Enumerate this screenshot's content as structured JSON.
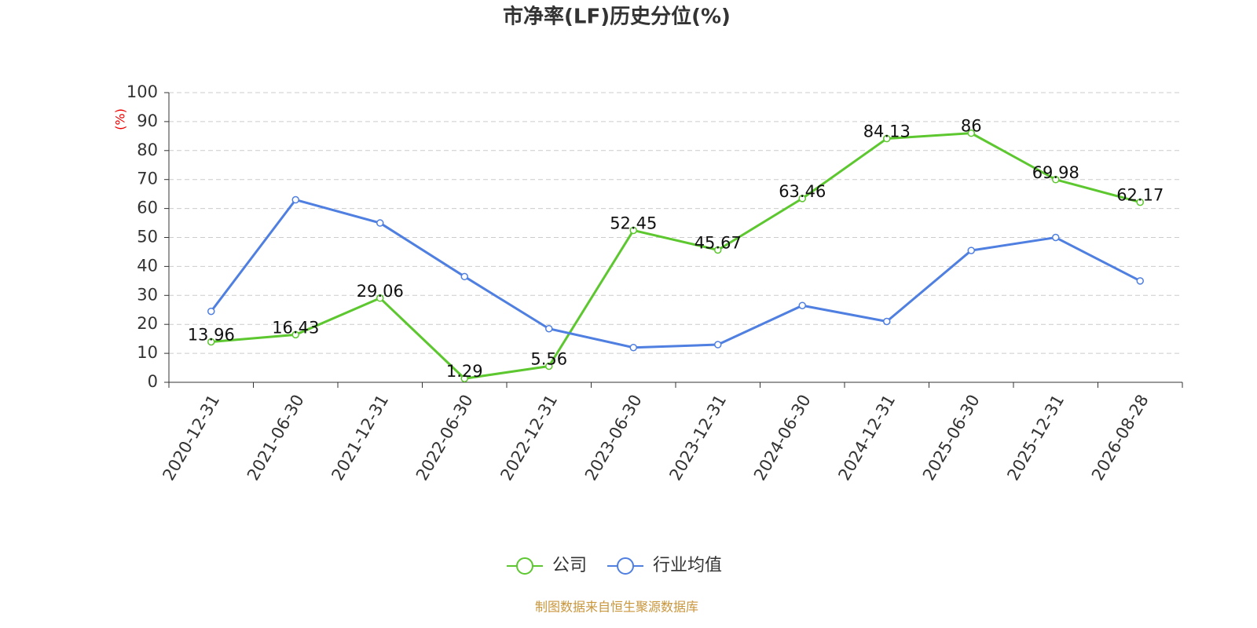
{
  "chart_data": {
    "type": "line",
    "title": "市净率(LF)历史分位(%)",
    "y_label": "(%)",
    "source": "制图数据来自恒生聚源数据库",
    "categories": [
      "2020-12-31",
      "2021-06-30",
      "2021-12-31",
      "2022-06-30",
      "2022-12-31",
      "2023-06-30",
      "2023-12-31",
      "2024-06-30",
      "2024-12-31",
      "2025-06-30",
      "2025-12-31",
      "2026-08-28"
    ],
    "series": [
      {
        "name": "公司",
        "color": "#5cc72e",
        "data_labels": true,
        "values": [
          13.96,
          16.43,
          29.06,
          1.29,
          5.56,
          52.45,
          45.67,
          63.46,
          84.13,
          86,
          69.98,
          62.17
        ]
      },
      {
        "name": "行业均值",
        "color": "#4f7fe0",
        "data_labels": false,
        "values": [
          24.5,
          63,
          55,
          36.5,
          18.5,
          12,
          13,
          26.5,
          21,
          45.5,
          50,
          35
        ]
      }
    ],
    "ylim": [
      0,
      100
    ],
    "yticks": [
      0,
      10,
      20,
      30,
      40,
      50,
      60,
      70,
      80,
      90,
      100
    ],
    "grid": true,
    "legend": "bottom"
  }
}
